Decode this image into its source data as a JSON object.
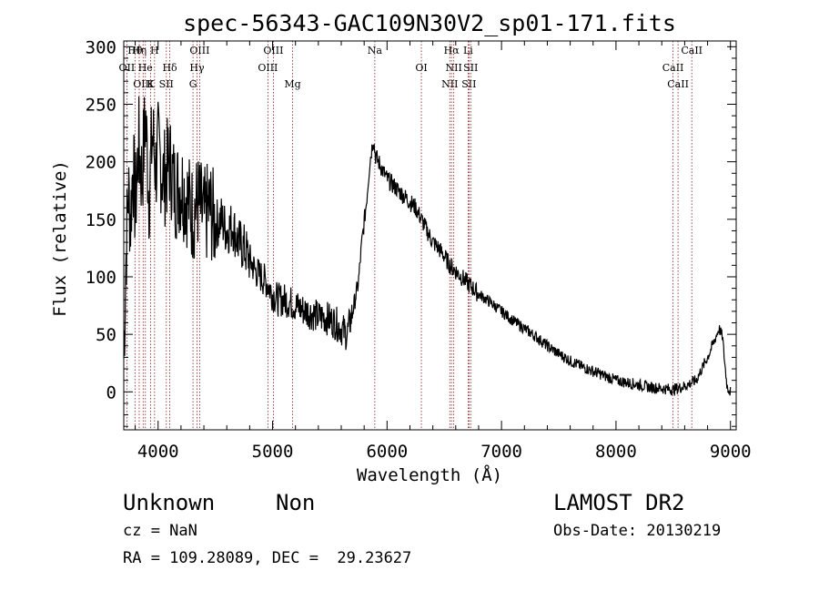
{
  "chart_data": {
    "type": "line",
    "title": "spec-56343-GAC109N30V2_sp01-171.fits",
    "xlabel": "Wavelength (Å)",
    "ylabel": "Flux (relative)",
    "xlim": [
      3700,
      9050
    ],
    "ylim": [
      -33,
      305
    ],
    "xticks": [
      4000,
      5000,
      6000,
      7000,
      8000,
      9000
    ],
    "yticks": [
      0,
      50,
      100,
      150,
      200,
      250,
      300
    ],
    "grid": false,
    "line_color": "#000000",
    "marker_color": "#8b1a1a",
    "series": [
      {
        "x": [
          3700,
          3720,
          3740,
          3760,
          3780,
          3800,
          3830,
          3860,
          3890,
          3920,
          3950,
          3980,
          4000,
          4050,
          4100,
          4150,
          4200,
          4250,
          4300,
          4350,
          4400,
          4450,
          4500,
          4550,
          4600,
          4650,
          4700,
          4750,
          4800,
          4850,
          4900,
          4950,
          5000,
          5050,
          5100,
          5150,
          5200,
          5250,
          5300,
          5350,
          5400,
          5450,
          5500,
          5550,
          5600,
          5650,
          5700,
          5750,
          5780,
          5820,
          5850,
          5880,
          5900,
          5950,
          6000,
          6050,
          6100,
          6150,
          6200,
          6250,
          6300,
          6350,
          6400,
          6450,
          6500,
          6550,
          6600,
          6650,
          6700,
          6750,
          6800,
          6900,
          7000,
          7100,
          7200,
          7300,
          7400,
          7500,
          7600,
          7700,
          7800,
          7900,
          8000,
          8100,
          8200,
          8300,
          8400,
          8500,
          8600,
          8700,
          8750,
          8800,
          8850,
          8900,
          8930,
          8950,
          8970,
          9000
        ],
        "y": [
          30,
          120,
          175,
          150,
          200,
          160,
          215,
          185,
          240,
          170,
          225,
          195,
          210,
          185,
          200,
          175,
          180,
          170,
          155,
          165,
          150,
          160,
          145,
          150,
          140,
          145,
          130,
          125,
          115,
          105,
          100,
          95,
          85,
          80,
          80,
          78,
          75,
          72,
          70,
          68,
          65,
          65,
          63,
          60,
          55,
          50,
          70,
          95,
          130,
          165,
          200,
          220,
          205,
          195,
          185,
          180,
          175,
          170,
          165,
          160,
          150,
          140,
          130,
          125,
          118,
          110,
          105,
          100,
          95,
          90,
          85,
          78,
          70,
          62,
          55,
          48,
          40,
          33,
          27,
          22,
          18,
          14,
          10,
          8,
          6,
          4,
          3,
          2,
          5,
          10,
          20,
          30,
          42,
          55,
          48,
          25,
          5,
          0
        ]
      }
    ],
    "lines": [
      {
        "name": "Hθ",
        "x": 3798
      },
      {
        "name": "OII",
        "x": 3727
      },
      {
        "name": "OIII",
        "x": 3869
      },
      {
        "name": "Hη",
        "x": 3835
      },
      {
        "name": "He",
        "x": 3889
      },
      {
        "name": "K",
        "x": 3934
      },
      {
        "name": "H",
        "x": 3969
      },
      {
        "name": "Hδ",
        "x": 4102
      },
      {
        "name": "SII",
        "x": 4072
      },
      {
        "name": "OIII",
        "x": 4363
      },
      {
        "name": "Hγ",
        "x": 4340
      },
      {
        "name": "G",
        "x": 4305
      },
      {
        "name": "OIII",
        "x": 5007
      },
      {
        "name": "OIII",
        "x": 4959
      },
      {
        "name": "Mg",
        "x": 5175
      },
      {
        "name": "Na",
        "x": 5893
      },
      {
        "name": "OI",
        "x": 6300
      },
      {
        "name": "NII",
        "x": 6548
      },
      {
        "name": "Li",
        "x": 6708
      },
      {
        "name": "NII",
        "x": 6583
      },
      {
        "name": "SII",
        "x": 6716
      },
      {
        "name": "Hα",
        "x": 6563
      },
      {
        "name": "SII",
        "x": 6731
      },
      {
        "name": "CaII",
        "x": 8542
      },
      {
        "name": "CaII",
        "x": 8662
      },
      {
        "name": "CaII",
        "x": 8498
      }
    ]
  },
  "info": {
    "class": "Unknown",
    "subclass": "Non",
    "survey": "LAMOST DR2",
    "cz": "cz = NaN",
    "obs_date": "Obs-Date: 20130219",
    "coords": "RA = 109.28089, DEC =  29.23627"
  }
}
